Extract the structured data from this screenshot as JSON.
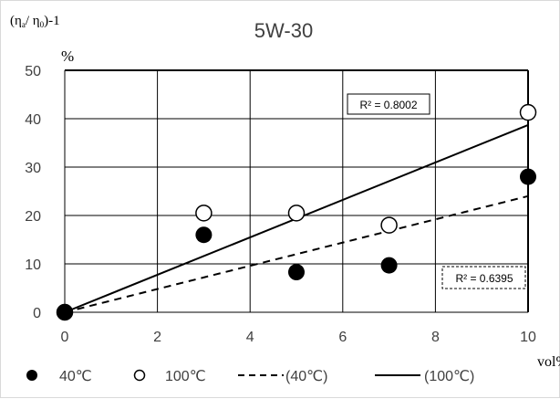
{
  "chart_data": {
    "type": "scatter",
    "title": "5W-30",
    "ylabel_main": "(η",
    "ylabel_sub1": "a",
    "ylabel_mid": "/ η",
    "ylabel_sub2": "0",
    "ylabel_end": ")-1",
    "yunit": "%",
    "xlabel": "vol%",
    "xlim": [
      0,
      10
    ],
    "ylim": [
      0,
      50
    ],
    "xticks": [
      "0",
      "2",
      "4",
      "6",
      "8",
      "10"
    ],
    "yticks": [
      "0",
      "10",
      "20",
      "30",
      "40",
      "50"
    ],
    "grid": true,
    "legend_position": "bottom",
    "series": [
      {
        "name": "40℃",
        "marker": "filled-circle",
        "x": [
          0,
          3,
          5,
          7,
          10
        ],
        "y": [
          0,
          16,
          8.3,
          9.7,
          28
        ]
      },
      {
        "name": "100℃",
        "marker": "open-circle",
        "x": [
          0,
          3,
          5,
          7,
          10
        ],
        "y": [
          0,
          20.5,
          20.5,
          18,
          41.3
        ]
      }
    ],
    "trendlines": [
      {
        "name": "(40℃)",
        "style": "dashed",
        "x": [
          0,
          10
        ],
        "y": [
          0,
          24
        ],
        "r2_label": "R² = 0.6395"
      },
      {
        "name": "(100℃)",
        "style": "solid",
        "x": [
          0,
          10
        ],
        "y": [
          0,
          38.7
        ],
        "r2_label": "R² = 0.8002"
      }
    ],
    "legend": [
      "40℃",
      "100℃",
      "(40℃)",
      "(100℃)"
    ]
  },
  "colors": {
    "marker": "#000000",
    "grid": "#000000",
    "text": "#404040",
    "trend": "#000000"
  }
}
